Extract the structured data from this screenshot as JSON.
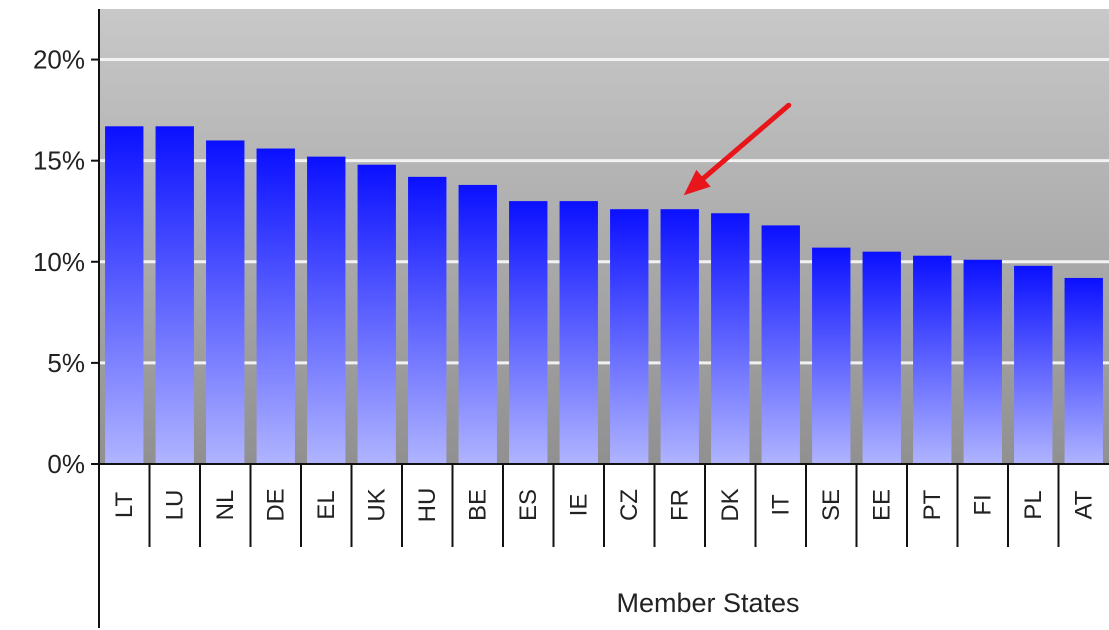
{
  "chart_data": {
    "type": "bar",
    "title": "",
    "xlabel": "Member States",
    "ylabel": "",
    "categories": [
      "LT",
      "LU",
      "NL",
      "DE",
      "EL",
      "UK",
      "HU",
      "BE",
      "ES",
      "IE",
      "CZ",
      "FR",
      "DK",
      "IT",
      "SE",
      "EE",
      "PT",
      "FI",
      "PL",
      "AT"
    ],
    "values": [
      16.7,
      16.7,
      16.0,
      15.6,
      15.2,
      14.8,
      14.2,
      13.8,
      13.0,
      13.0,
      12.6,
      12.6,
      12.4,
      11.8,
      10.7,
      10.5,
      10.3,
      10.1,
      9.8,
      9.2
    ],
    "ylim": [
      0,
      22.5
    ],
    "yticks": [
      {
        "value": 0,
        "label": "0%"
      },
      {
        "value": 5,
        "label": "5%"
      },
      {
        "value": 10,
        "label": "10%"
      },
      {
        "value": 15,
        "label": "15%"
      },
      {
        "value": 20,
        "label": "20%"
      }
    ],
    "grid": true,
    "highlight": {
      "category": "FR",
      "marker": "red-arrow"
    },
    "colors": {
      "bar_top": "#0a10ff",
      "bar_bottom": "#b0b4ff",
      "plot_bg_top": "#c8c8c8",
      "plot_bg_bottom": "#909090",
      "gridline": "#f2f2f2",
      "arrow": "#e8161a"
    }
  }
}
